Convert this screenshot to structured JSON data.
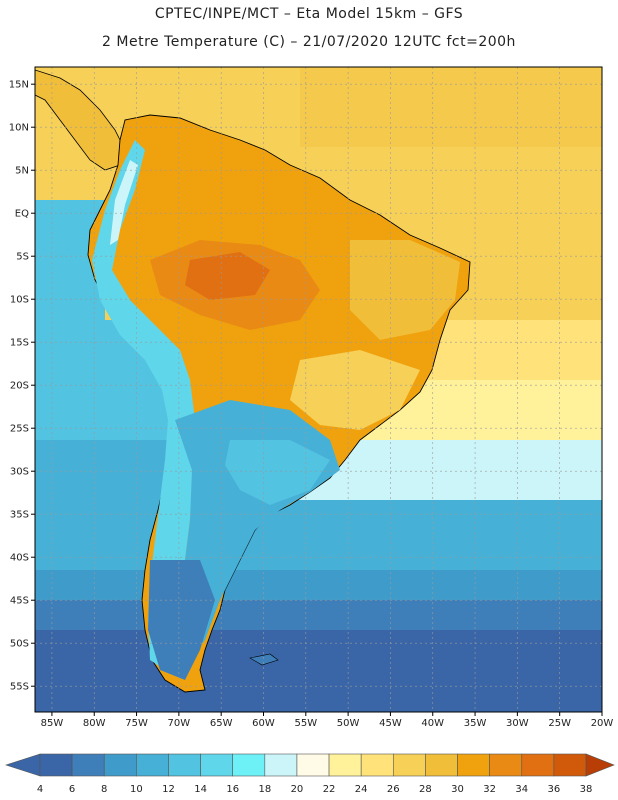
{
  "header": {
    "title_line1": "CPTEC/INPE/MCT –  Eta Model 15km – GFS",
    "title_line2": "2 Metre Temperature (C) – 21/07/2020 12UTC fct=200h"
  },
  "map": {
    "lat_labels": [
      "15N",
      "10N",
      "5N",
      "EQ",
      "5S",
      "10S",
      "15S",
      "20S",
      "25S",
      "30S",
      "35S",
      "40S",
      "45S",
      "50S",
      "55S"
    ],
    "lon_labels": [
      "85W",
      "80W",
      "75W",
      "70W",
      "65W",
      "60W",
      "55W",
      "50W",
      "45W",
      "40W",
      "35W",
      "30W",
      "25W",
      "20W"
    ],
    "lat_values": [
      15,
      10,
      5,
      0,
      -5,
      -10,
      -15,
      -20,
      -25,
      -30,
      -35,
      -40,
      -45,
      -50,
      -55
    ],
    "lon_values": [
      -85,
      -80,
      -75,
      -70,
      -65,
      -60,
      -55,
      -50,
      -45,
      -40,
      -35,
      -30,
      -25,
      -20
    ]
  },
  "colorbar": {
    "labels": [
      "4",
      "6",
      "8",
      "10",
      "12",
      "14",
      "16",
      "18",
      "20",
      "22",
      "24",
      "26",
      "28",
      "30",
      "32",
      "34",
      "36",
      "38"
    ],
    "colors": [
      "#3a66a8",
      "#3f7fb9",
      "#3f9bc9",
      "#47b0d6",
      "#52c3e0",
      "#5fd6ea",
      "#6ef0f7",
      "#ccf5fa",
      "#fffbe6",
      "#fff29a",
      "#ffe27a",
      "#f7d057",
      "#f0be38",
      "#f0a20e",
      "#e98a14",
      "#e07012",
      "#d15a0a",
      "#b83e05"
    ]
  },
  "colors": {
    "frame": "#000000",
    "grid": "#9a9a9a"
  }
}
